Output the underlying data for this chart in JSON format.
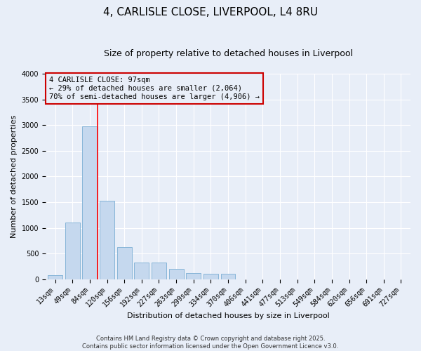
{
  "title_line1": "4, CARLISLE CLOSE, LIVERPOOL, L4 8RU",
  "title_line2": "Size of property relative to detached houses in Liverpool",
  "xlabel": "Distribution of detached houses by size in Liverpool",
  "ylabel": "Number of detached properties",
  "categories": [
    "13sqm",
    "49sqm",
    "84sqm",
    "120sqm",
    "156sqm",
    "192sqm",
    "227sqm",
    "263sqm",
    "299sqm",
    "334sqm",
    "370sqm",
    "406sqm",
    "441sqm",
    "477sqm",
    "513sqm",
    "549sqm",
    "584sqm",
    "620sqm",
    "656sqm",
    "691sqm",
    "727sqm"
  ],
  "values": [
    75,
    1100,
    2980,
    1530,
    620,
    330,
    330,
    200,
    120,
    110,
    110,
    0,
    0,
    0,
    0,
    0,
    0,
    0,
    0,
    0,
    0
  ],
  "bar_color": "#c5d8ee",
  "bar_edge_color": "#7aaed4",
  "background_color": "#e8eef8",
  "grid_color": "#ffffff",
  "annotation_line1": "4 CARLISLE CLOSE: 97sqm",
  "annotation_line2": "← 29% of detached houses are smaller (2,064)",
  "annotation_line3": "70% of semi-detached houses are larger (4,906) →",
  "annotation_box_color": "#cc0000",
  "red_line_x": 2.45,
  "ylim": [
    0,
    4000
  ],
  "yticks": [
    0,
    500,
    1000,
    1500,
    2000,
    2500,
    3000,
    3500,
    4000
  ],
  "footer_line1": "Contains HM Land Registry data © Crown copyright and database right 2025.",
  "footer_line2": "Contains public sector information licensed under the Open Government Licence v3.0.",
  "title_fontsize": 11,
  "subtitle_fontsize": 9,
  "tick_fontsize": 7,
  "ylabel_fontsize": 8,
  "xlabel_fontsize": 8,
  "annotation_fontsize": 7.5,
  "footer_fontsize": 6
}
